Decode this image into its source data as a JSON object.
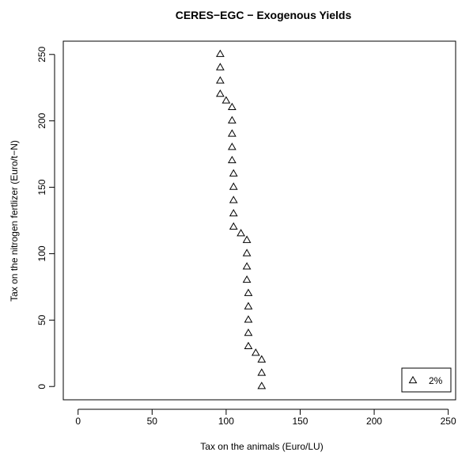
{
  "chart_data": {
    "type": "scatter",
    "title": "CERES−EGC − Exogenous Yields",
    "xlabel": "Tax on the animals (Euro/LU)",
    "ylabel": "Tax on the nitrogen fertlizer (Euro/t−N)",
    "xlim": [
      -10,
      255
    ],
    "ylim": [
      -10,
      260
    ],
    "x_ticks": [
      0,
      50,
      100,
      150,
      200,
      250
    ],
    "y_ticks": [
      0,
      50,
      100,
      150,
      200,
      250
    ],
    "marker": "triangle-open",
    "color": "#000000",
    "legend_position": "bottom-right",
    "grid": false,
    "series": [
      {
        "name": "2%",
        "points": [
          {
            "x": 124,
            "y": 0
          },
          {
            "x": 124,
            "y": 10
          },
          {
            "x": 124,
            "y": 20
          },
          {
            "x": 120,
            "y": 25
          },
          {
            "x": 115,
            "y": 30
          },
          {
            "x": 115,
            "y": 40
          },
          {
            "x": 115,
            "y": 50
          },
          {
            "x": 115,
            "y": 60
          },
          {
            "x": 115,
            "y": 70
          },
          {
            "x": 114,
            "y": 80
          },
          {
            "x": 114,
            "y": 90
          },
          {
            "x": 114,
            "y": 100
          },
          {
            "x": 114,
            "y": 110
          },
          {
            "x": 110,
            "y": 115
          },
          {
            "x": 105,
            "y": 120
          },
          {
            "x": 105,
            "y": 130
          },
          {
            "x": 105,
            "y": 140
          },
          {
            "x": 105,
            "y": 150
          },
          {
            "x": 105,
            "y": 160
          },
          {
            "x": 104,
            "y": 170
          },
          {
            "x": 104,
            "y": 180
          },
          {
            "x": 104,
            "y": 190
          },
          {
            "x": 104,
            "y": 200
          },
          {
            "x": 104,
            "y": 210
          },
          {
            "x": 100,
            "y": 215
          },
          {
            "x": 96,
            "y": 220
          },
          {
            "x": 96,
            "y": 230
          },
          {
            "x": 96,
            "y": 240
          },
          {
            "x": 96,
            "y": 250
          }
        ]
      }
    ]
  }
}
